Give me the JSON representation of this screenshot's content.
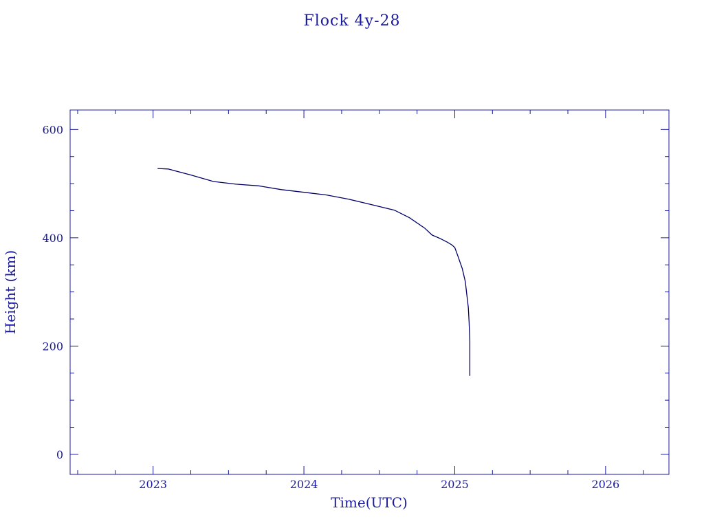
{
  "chart_data": {
    "type": "line",
    "title": "Flock 4y-28",
    "xlabel": "Time(UTC)",
    "ylabel": "Height (km)",
    "xlim": [
      2022.45,
      2026.42
    ],
    "ylim": [
      -37,
      636
    ],
    "x_ticks": [
      {
        "value": 2023,
        "label": "2023"
      },
      {
        "value": 2024,
        "label": "2024"
      },
      {
        "value": 2025,
        "label": "2025"
      },
      {
        "value": 2026,
        "label": "2026"
      }
    ],
    "y_ticks": [
      {
        "value": 0,
        "label": "0"
      },
      {
        "value": 200,
        "label": "200"
      },
      {
        "value": 400,
        "label": "400"
      },
      {
        "value": 600,
        "label": "600"
      }
    ],
    "grid": false,
    "colors": {
      "axis": "#1a1a9c",
      "line": "#000066"
    },
    "series": [
      {
        "x": [
          2023.03,
          2023.1,
          2023.25,
          2023.4,
          2023.55,
          2023.7,
          2023.85,
          2024.0,
          2024.15,
          2024.3,
          2024.45,
          2024.6,
          2024.7,
          2024.8,
          2024.85,
          2024.9,
          2024.95,
          2024.98,
          2025.0,
          2025.02,
          2025.05,
          2025.07,
          2025.08,
          2025.09,
          2025.095,
          2025.1,
          2025.1
        ],
        "y": [
          528,
          527,
          516,
          504,
          499,
          496,
          489,
          484,
          479,
          471,
          461,
          451,
          437,
          418,
          405,
          399,
          392,
          387,
          382,
          367,
          343,
          319,
          295,
          271,
          245,
          210,
          145
        ]
      }
    ]
  }
}
